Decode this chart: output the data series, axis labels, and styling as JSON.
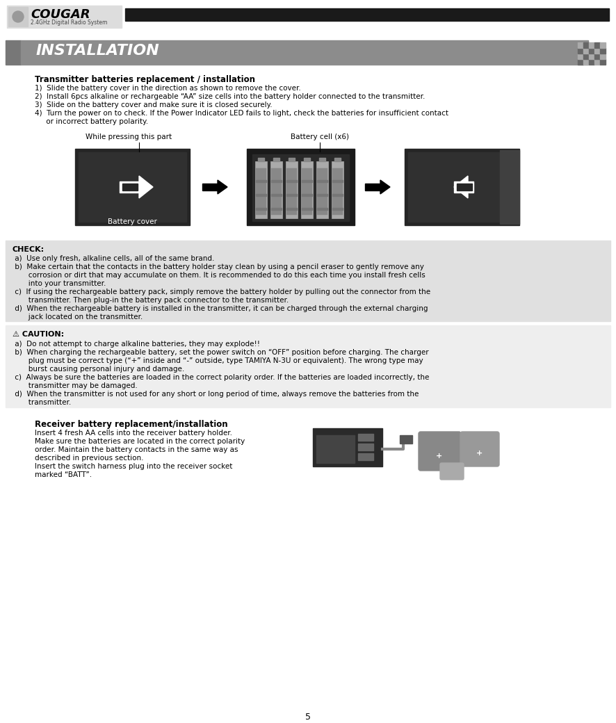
{
  "page_bg": "#ffffff",
  "banner_bg": "#8c8c8c",
  "banner_text": "INSTALLATION",
  "banner_text_color": "#ffffff",
  "banner_left_color": "#6e6e6e",
  "check_bg": "#e0e0e0",
  "caution_bg": "#eeeeee",
  "header_black_bar": "#1a1a1a",
  "section1_title": "Transmitter batteries replacement / installation",
  "s1_lines": [
    "1)  Slide the battery cover in the direction as shown to remove the cover.",
    "2)  Install 6pcs alkaline or rechargeable “AA” size cells into the battery holder connected to the transmitter.",
    "3)  Slide on the battery cover and make sure it is closed securely.",
    "4)  Turn the power on to check. If the Power Indicator LED fails to light, check the batteries for insufficient contact",
    "     or incorrect battery polarity."
  ],
  "img_label1": "While pressing this part",
  "img_label2": "Battery cell (x6)",
  "img_label3": "Battery cover",
  "check_title": "CHECK:",
  "check_lines": [
    " a)  Use only fresh, alkaline cells, all of the same brand.",
    " b)  Make certain that the contacts in the battery holder stay clean by using a pencil eraser to gently remove any",
    "       corrosion or dirt that may accumulate on them. It is recommended to do this each time you install fresh cells",
    "       into your transmitter.",
    " c)  If using the rechargeable battery pack, simply remove the battery holder by pulling out the connector from the",
    "       transmitter. Then plug-in the battery pack connector to the transmitter.",
    " d)  When the rechargeable battery is installed in the transmitter, it can be charged through the external charging",
    "       jack located on the transmitter."
  ],
  "caution_title": "⚠ CAUTION:",
  "caution_lines": [
    " a)  Do not attempt to charge alkaline batteries, they may explode!!",
    " b)  When charging the rechargeable battery, set the power switch on “OFF” position before charging. The charger",
    "       plug must be correct type (“+” inside and “-” outside, type TAMIYA N-3U or equivalent). The wrong type may",
    "       burst causing personal injury and damage.",
    " c)  Always be sure the batteries are loaded in the correct polarity order. If the batteries are loaded incorrectly, the",
    "       transmitter may be damaged.",
    " d)  When the transmitter is not used for any short or long period of time, always remove the batteries from the",
    "       transmitter."
  ],
  "section2_title": "Receiver battery replacement/installation",
  "section2_lines": [
    "Insert 4 fresh AA cells into the receiver battery holder.",
    "Make sure the batteries are located in the correct polarity",
    "order. Maintain the battery contacts in the same way as",
    "described in previous section.",
    "Insert the switch harness plug into the receiver socket",
    "marked “BATT”."
  ],
  "page_number": "5"
}
